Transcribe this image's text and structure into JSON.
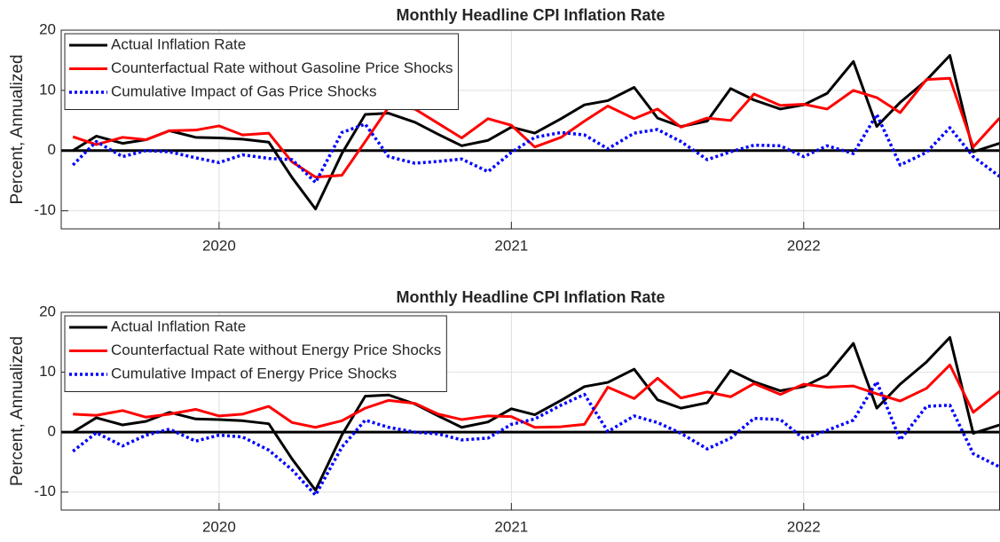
{
  "chart_data": [
    {
      "type": "line",
      "title": "Monthly Headline CPI Inflation Rate",
      "ylabel": "Percent, Annualized",
      "x": [
        2019.5,
        2019.58,
        2019.67,
        2019.75,
        2019.83,
        2019.92,
        2020,
        2020.08,
        2020.17,
        2020.25,
        2020.33,
        2020.42,
        2020.5,
        2020.58,
        2020.67,
        2020.75,
        2020.83,
        2020.92,
        2021,
        2021.08,
        2021.17,
        2021.25,
        2021.33,
        2021.42,
        2021.5,
        2021.58,
        2021.67,
        2021.75,
        2021.83,
        2021.92,
        2022,
        2022.08,
        2022.17,
        2022.25,
        2022.33,
        2022.42,
        2022.5,
        2022.58,
        2022.67
      ],
      "series": [
        {
          "name": "Actual Inflation Rate",
          "color": "#000000",
          "style": "solid",
          "values": [
            0,
            2.4,
            1.2,
            1.8,
            3.3,
            2.2,
            2.1,
            1.9,
            1.4,
            -4.5,
            -9.7,
            -0.5,
            6.0,
            6.2,
            4.7,
            2.7,
            0.8,
            1.7,
            3.9,
            2.9,
            5.3,
            7.6,
            8.3,
            10.5,
            5.4,
            4.0,
            4.9,
            10.3,
            8.4,
            6.9,
            7.6,
            9.5,
            14.8,
            4.0,
            8.0,
            11.7,
            15.8,
            -0.2,
            1.2
          ]
        },
        {
          "name": "Counterfactual Rate without Gasoline Price Shocks",
          "color": "#ff0000",
          "style": "solid",
          "values": [
            2.3,
            1.0,
            2.2,
            1.8,
            3.3,
            3.4,
            4.1,
            2.6,
            2.9,
            -1.9,
            -4.4,
            -4.1,
            1.5,
            7.2,
            6.9,
            4.5,
            2.1,
            5.3,
            4.2,
            0.6,
            2.2,
            4.9,
            7.4,
            5.3,
            6.9,
            3.9,
            5.4,
            5.0,
            9.4,
            7.5,
            7.7,
            6.9,
            10.0,
            8.8,
            6.3,
            11.8,
            12.0,
            0.6,
            5.4
          ]
        },
        {
          "name": "Cumulative Impact of Gas Price Shocks",
          "color": "#0000ff",
          "style": "dotted",
          "values": [
            -2.4,
            1.5,
            -1.0,
            0,
            -0.2,
            -1.2,
            -2.0,
            -0.7,
            -1.3,
            -1.5,
            -5.3,
            3.0,
            4.4,
            -1.0,
            -2.1,
            -1.8,
            -1.4,
            -3.5,
            -0.3,
            2.2,
            3.0,
            2.6,
            0.3,
            2.9,
            3.5,
            1.5,
            -1.5,
            -0.2,
            0.9,
            0.8,
            -1.0,
            0.8,
            -0.5,
            6.0,
            -2.4,
            -0.3,
            3.8,
            -1.0,
            -4.3
          ]
        }
      ],
      "xlim": [
        2019.46,
        2022.67
      ],
      "xticks": [
        2020,
        2021,
        2022
      ],
      "ylim": [
        -13,
        20
      ],
      "yticks": [
        -10,
        0,
        10,
        20
      ],
      "reference_line": 0,
      "grid": true,
      "legend": "upper-left"
    },
    {
      "type": "line",
      "title": "Monthly Headline CPI Inflation Rate",
      "ylabel": "Percent, Annualized",
      "x": [
        2019.5,
        2019.58,
        2019.67,
        2019.75,
        2019.83,
        2019.92,
        2020,
        2020.08,
        2020.17,
        2020.25,
        2020.33,
        2020.42,
        2020.5,
        2020.58,
        2020.67,
        2020.75,
        2020.83,
        2020.92,
        2021,
        2021.08,
        2021.17,
        2021.25,
        2021.33,
        2021.42,
        2021.5,
        2021.58,
        2021.67,
        2021.75,
        2021.83,
        2021.92,
        2022,
        2022.08,
        2022.17,
        2022.25,
        2022.33,
        2022.42,
        2022.5,
        2022.58,
        2022.67
      ],
      "series": [
        {
          "name": "Actual Inflation Rate",
          "color": "#000000",
          "style": "solid",
          "values": [
            0,
            2.4,
            1.2,
            1.8,
            3.3,
            2.2,
            2.1,
            1.9,
            1.4,
            -4.5,
            -9.7,
            -0.5,
            6.0,
            6.2,
            4.7,
            2.7,
            0.8,
            1.7,
            3.9,
            2.9,
            5.3,
            7.6,
            8.3,
            10.5,
            5.4,
            4.0,
            4.9,
            10.3,
            8.4,
            6.9,
            7.6,
            9.5,
            14.8,
            4.0,
            8.0,
            11.7,
            15.8,
            -0.2,
            1.2
          ]
        },
        {
          "name": "Counterfactual Rate without Energy Price Shocks",
          "color": "#ff0000",
          "style": "solid",
          "values": [
            3.0,
            2.8,
            3.6,
            2.5,
            3.0,
            3.8,
            2.7,
            3.0,
            4.3,
            1.6,
            0.8,
            1.9,
            4.0,
            5.3,
            4.8,
            3.0,
            2.1,
            2.7,
            2.6,
            0.8,
            0.9,
            1.3,
            7.5,
            5.6,
            9.0,
            5.7,
            6.7,
            5.9,
            8.1,
            6.3,
            8.0,
            7.5,
            7.7,
            6.4,
            5.2,
            7.3,
            11.2,
            3.3,
            6.8
          ]
        },
        {
          "name": "Cumulative Impact of Energy Price Shocks",
          "color": "#0000ff",
          "style": "dotted",
          "values": [
            -3.2,
            -0.1,
            -2.3,
            -0.5,
            0.5,
            -1.5,
            -0.5,
            -0.8,
            -3.0,
            -6.3,
            -10.5,
            -2.5,
            2.0,
            0.8,
            0,
            -0.3,
            -1.3,
            -1.0,
            1.3,
            2.2,
            4.5,
            6.3,
            0.1,
            2.7,
            1.6,
            -0.2,
            -2.8,
            -1.0,
            2.3,
            2.1,
            -1.1,
            0.3,
            2.0,
            8.4,
            -1.3,
            4.3,
            4.5,
            -3.6,
            -5.8
          ]
        }
      ],
      "xlim": [
        2019.46,
        2022.67
      ],
      "xticks": [
        2020,
        2021,
        2022
      ],
      "ylim": [
        -13,
        20
      ],
      "yticks": [
        -10,
        0,
        10,
        20
      ],
      "reference_line": 0,
      "grid": true,
      "legend": "upper-left"
    }
  ]
}
